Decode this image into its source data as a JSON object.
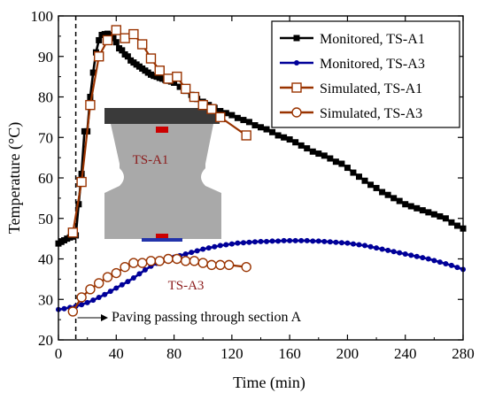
{
  "chart_data": {
    "type": "line",
    "xlabel": "Time (min)",
    "ylabel": "Temperature (°C)",
    "xlim": [
      0,
      280
    ],
    "ylim": [
      20,
      100
    ],
    "xticks": [
      0,
      40,
      80,
      120,
      160,
      200,
      240,
      280
    ],
    "yticks": [
      20,
      30,
      40,
      50,
      60,
      70,
      80,
      90,
      100
    ],
    "grid": false,
    "legend_position": "top-right",
    "series": [
      {
        "name": "Monitored, TS-A1",
        "color": "#000000",
        "marker": "filled-square",
        "x": [
          0,
          2,
          4,
          6,
          8,
          10,
          12,
          14,
          16,
          18,
          20,
          22,
          24,
          26,
          28,
          30,
          32,
          34,
          36,
          38,
          40,
          42,
          44,
          46,
          48,
          50,
          52,
          54,
          56,
          58,
          60,
          62,
          64,
          66,
          68,
          70,
          72,
          74,
          76,
          78,
          80,
          84,
          88,
          92,
          96,
          100,
          104,
          108,
          112,
          116,
          120,
          124,
          128,
          132,
          136,
          140,
          144,
          148,
          152,
          156,
          160,
          164,
          168,
          172,
          176,
          180,
          184,
          188,
          192,
          196,
          200,
          204,
          208,
          212,
          216,
          220,
          224,
          228,
          232,
          236,
          240,
          244,
          248,
          252,
          256,
          260,
          264,
          268,
          272,
          276,
          280
        ],
        "y": [
          43.8,
          44.2,
          44.6,
          45.0,
          45.3,
          45.5,
          45.8,
          53.5,
          61.0,
          71.5,
          71.5,
          80.0,
          86.0,
          91.0,
          94.0,
          95.3,
          95.5,
          95.6,
          95.3,
          94.5,
          93.5,
          92.0,
          91.5,
          90.5,
          90.0,
          89.0,
          88.5,
          88.0,
          87.5,
          87.0,
          86.5,
          86.0,
          85.5,
          85.2,
          85.0,
          84.7,
          84.5,
          84.2,
          84.0,
          83.8,
          83.5,
          82.5,
          81.5,
          80.5,
          79.5,
          78.8,
          78.0,
          77.3,
          76.5,
          76.0,
          75.5,
          74.8,
          74.3,
          73.8,
          73.0,
          72.5,
          72.0,
          71.3,
          70.5,
          70.0,
          69.5,
          68.8,
          68.0,
          67.3,
          66.5,
          66.0,
          65.5,
          64.8,
          64.0,
          63.5,
          62.5,
          61.3,
          60.3,
          59.3,
          58.3,
          57.5,
          56.5,
          55.8,
          55.0,
          54.3,
          53.5,
          53.0,
          52.5,
          52.0,
          51.5,
          51.0,
          50.5,
          50.0,
          49.0,
          48.2,
          47.5
        ]
      },
      {
        "name": "Monitored, TS-A3",
        "color": "#000099",
        "marker": "filled-circle",
        "x": [
          0,
          4,
          8,
          12,
          16,
          20,
          24,
          28,
          32,
          36,
          40,
          44,
          48,
          52,
          56,
          60,
          64,
          68,
          72,
          76,
          80,
          84,
          88,
          92,
          96,
          100,
          104,
          108,
          112,
          116,
          120,
          124,
          128,
          132,
          136,
          140,
          144,
          148,
          152,
          156,
          160,
          164,
          168,
          172,
          176,
          180,
          184,
          188,
          192,
          196,
          200,
          204,
          208,
          212,
          216,
          220,
          224,
          228,
          232,
          236,
          240,
          244,
          248,
          252,
          256,
          260,
          264,
          268,
          272,
          276,
          280
        ],
        "y": [
          27.5,
          27.7,
          28.0,
          28.3,
          28.7,
          29.2,
          29.8,
          30.5,
          31.2,
          32.0,
          32.8,
          33.6,
          34.4,
          35.3,
          36.3,
          37.3,
          38.2,
          38.9,
          39.5,
          40.0,
          40.4,
          40.8,
          41.2,
          41.6,
          42.0,
          42.4,
          42.7,
          43.0,
          43.3,
          43.5,
          43.7,
          43.9,
          44.0,
          44.1,
          44.2,
          44.3,
          44.3,
          44.4,
          44.4,
          44.5,
          44.5,
          44.5,
          44.5,
          44.5,
          44.4,
          44.4,
          44.3,
          44.2,
          44.1,
          44.0,
          43.9,
          43.7,
          43.5,
          43.3,
          43.0,
          42.7,
          42.4,
          42.1,
          41.8,
          41.5,
          41.2,
          40.9,
          40.6,
          40.3,
          40.0,
          39.6,
          39.2,
          38.8,
          38.4,
          37.9,
          37.4
        ]
      },
      {
        "name": "Simulated, TS-A1",
        "color": "#993300",
        "marker": "open-square",
        "x": [
          10,
          16,
          22,
          28,
          34,
          40,
          46,
          52,
          58,
          64,
          70,
          76,
          82,
          88,
          94,
          100,
          106,
          112,
          130
        ],
        "y": [
          46.5,
          59.0,
          78.0,
          90.0,
          94.0,
          96.5,
          94.5,
          95.5,
          93.0,
          89.5,
          86.5,
          84.5,
          85.0,
          82.0,
          80.0,
          78.0,
          77.0,
          75.0,
          70.5
        ]
      },
      {
        "name": "Simulated, TS-A3",
        "color": "#993300",
        "marker": "open-circle",
        "x": [
          10,
          16,
          22,
          28,
          34,
          40,
          46,
          52,
          58,
          64,
          70,
          76,
          82,
          88,
          94,
          100,
          106,
          112,
          118,
          130
        ],
        "y": [
          27.0,
          30.5,
          32.5,
          34.0,
          35.5,
          36.5,
          38.0,
          39.0,
          39.0,
          39.5,
          39.5,
          40.0,
          40.0,
          39.5,
          39.5,
          39.0,
          38.5,
          38.5,
          38.5,
          38.0
        ]
      }
    ],
    "vline": {
      "x": 12
    },
    "annotation": {
      "text": "Paving passing through section A"
    },
    "section_labels": {
      "a1": "TS-A1",
      "a3": "TS-A3"
    }
  }
}
